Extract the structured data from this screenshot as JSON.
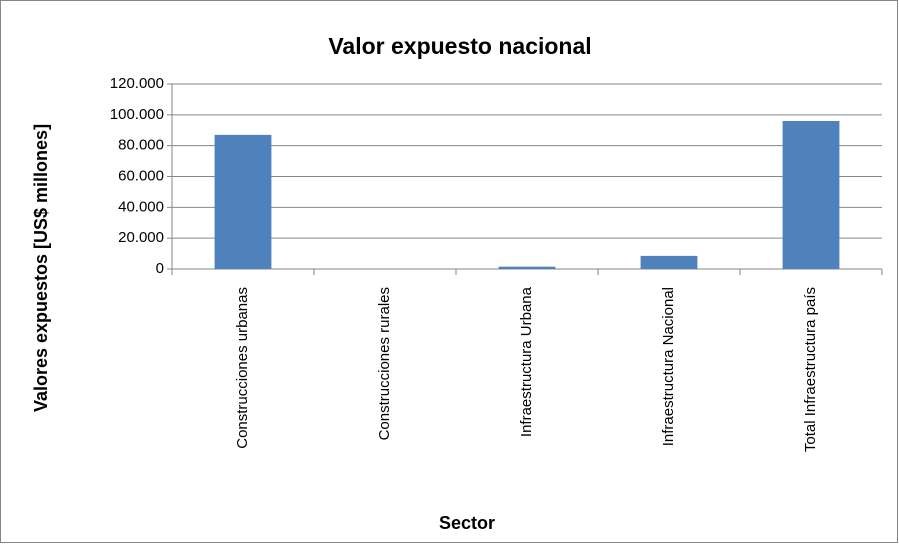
{
  "chart_data": {
    "type": "bar",
    "title": "Valor expuesto nacional",
    "x_label": "Sector",
    "y_label": "Valores expuestos  [US$ millones]",
    "categories": [
      "Construcciones urbanas",
      "Construcciones rurales",
      "Infraestructura Urbana",
      "Infraestructura Nacional",
      "Total Infraestructura país"
    ],
    "values": [
      87000,
      0,
      1500,
      8500,
      96000
    ],
    "color": "#4f81bd",
    "ylim": [
      0,
      120000
    ],
    "yticks": [
      0,
      {
        "value": 20000,
        "label": "20.000"
      },
      {
        "value": 40000,
        "label": "40.000"
      },
      {
        "value": 60000,
        "label": "60.000"
      },
      {
        "value": 80000,
        "label": "80.000"
      },
      {
        "value": 100000,
        "label": "100.000"
      },
      {
        "value": 120000,
        "label": "120.000"
      }
    ],
    "grid": true
  }
}
